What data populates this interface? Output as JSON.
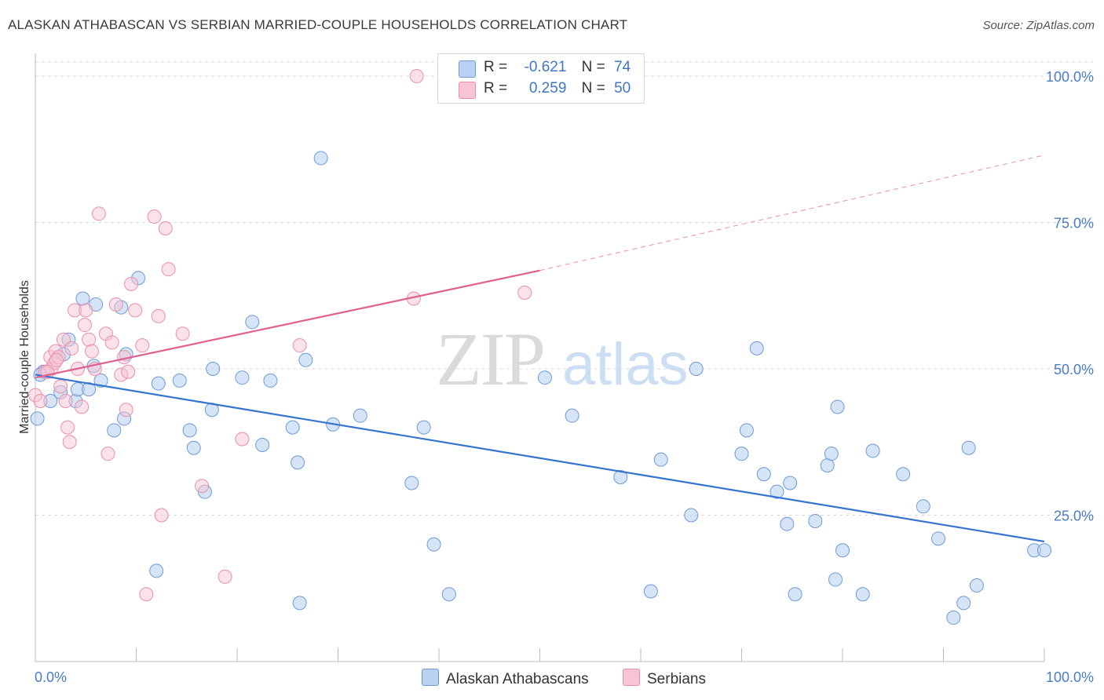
{
  "title": "ALASKAN ATHABASCAN VS SERBIAN MARRIED-COUPLE HOUSEHOLDS CORRELATION CHART",
  "source": "Source: ZipAtlas.com",
  "watermark": {
    "zip": "ZIP",
    "atlas": "atlas"
  },
  "legend": {
    "rows": [
      {
        "r_label": "R =",
        "r_value": "-0.621",
        "n_label": "N =",
        "n_value": "74"
      },
      {
        "r_label": "R =",
        "r_value": " 0.259",
        "n_label": "N =",
        "n_value": "50"
      }
    ]
  },
  "colors": {
    "blue_fill": "#b9d2f2",
    "blue_stroke": "#6f9ad6",
    "blue_line": "#3474d0",
    "pink_fill": "#f8c4d4",
    "pink_stroke": "#e890aa",
    "pink_line": "#e06090",
    "tick_text": "#4a7cc4",
    "grid": "#dddddd"
  },
  "chart_data": {
    "type": "scatter",
    "title": "ALASKAN ATHABASCAN VS SERBIAN MARRIED-COUPLE HOUSEHOLDS CORRELATION CHART",
    "xlabel": "",
    "ylabel": "Married-couple Households",
    "xlim": [
      0,
      100
    ],
    "ylim": [
      0,
      100
    ],
    "x_tick_labels": [
      "0.0%",
      "100.0%"
    ],
    "y_tick_labels": [
      "100.0%",
      "75.0%",
      "50.0%",
      "25.0%"
    ],
    "y_ticks": [
      100,
      75,
      50,
      25
    ],
    "grid": true,
    "legend_placement": "bottom-center",
    "series": [
      {
        "name": "Alaskan Athabascans",
        "color": "#b9d2f2",
        "R": -0.621,
        "N": 74,
        "trend": {
          "x": [
            0,
            100
          ],
          "y": [
            49.0,
            20.5
          ]
        },
        "points": [
          [
            0.2,
            41.5
          ],
          [
            0.8,
            49.5
          ],
          [
            1.5,
            44.5
          ],
          [
            2.5,
            46
          ],
          [
            2.8,
            52.5
          ],
          [
            3.3,
            55
          ],
          [
            4,
            44.5
          ],
          [
            4.2,
            46.5
          ],
          [
            4.7,
            62
          ],
          [
            5.3,
            46.5
          ],
          [
            5.8,
            50.5
          ],
          [
            6,
            61
          ],
          [
            6.5,
            48
          ],
          [
            7.8,
            39.5
          ],
          [
            8.5,
            60.5
          ],
          [
            8.8,
            41.5
          ],
          [
            9,
            52.5
          ],
          [
            10.2,
            65.5
          ],
          [
            12,
            15.5
          ],
          [
            12.2,
            47.5
          ],
          [
            14.3,
            48
          ],
          [
            15.3,
            39.5
          ],
          [
            15.7,
            36.5
          ],
          [
            16.8,
            29
          ],
          [
            17.5,
            43
          ],
          [
            17.6,
            50
          ],
          [
            20.5,
            48.5
          ],
          [
            21.5,
            58
          ],
          [
            22.5,
            37
          ],
          [
            23.3,
            48
          ],
          [
            25.5,
            40
          ],
          [
            26,
            34
          ],
          [
            26.2,
            10
          ],
          [
            26.8,
            51.5
          ],
          [
            28.3,
            86
          ],
          [
            29.5,
            40.5
          ],
          [
            32.2,
            42
          ],
          [
            37.3,
            30.5
          ],
          [
            38.5,
            40
          ],
          [
            39.5,
            20
          ],
          [
            41,
            11.5
          ],
          [
            50.5,
            48.5
          ],
          [
            53.2,
            42
          ],
          [
            58,
            31.5
          ],
          [
            61,
            12
          ],
          [
            62,
            34.5
          ],
          [
            65,
            25
          ],
          [
            65.5,
            50
          ],
          [
            70,
            35.5
          ],
          [
            70.5,
            39.5
          ],
          [
            71.5,
            53.5
          ],
          [
            72.2,
            32
          ],
          [
            73.5,
            29
          ],
          [
            74.5,
            23.5
          ],
          [
            74.8,
            30.5
          ],
          [
            75.3,
            11.5
          ],
          [
            77.3,
            24
          ],
          [
            78.5,
            33.5
          ],
          [
            78.9,
            35.5
          ],
          [
            79.3,
            14
          ],
          [
            79.5,
            43.5
          ],
          [
            80,
            19
          ],
          [
            82,
            11.5
          ],
          [
            83,
            36
          ],
          [
            86,
            32
          ],
          [
            88,
            26.5
          ],
          [
            89.5,
            21
          ],
          [
            91,
            7.5
          ],
          [
            92,
            10
          ],
          [
            92.5,
            36.5
          ],
          [
            93.3,
            13
          ],
          [
            99,
            19
          ],
          [
            100,
            19
          ],
          [
            0.5,
            49
          ]
        ]
      },
      {
        "name": "Serbians",
        "color": "#f8c4d4",
        "R": 0.259,
        "N": 50,
        "trend": {
          "x": [
            0,
            50
          ],
          "y": [
            48.5,
            66.8
          ]
        },
        "trend_dashed": {
          "x": [
            50,
            100
          ],
          "y": [
            66.8,
            86.5
          ]
        },
        "points": [
          [
            0,
            45.5
          ],
          [
            0.5,
            44.5
          ],
          [
            1,
            49.5
          ],
          [
            1.5,
            52
          ],
          [
            1.6,
            50
          ],
          [
            1.9,
            51
          ],
          [
            2,
            53
          ],
          [
            2.3,
            52
          ],
          [
            2.5,
            47
          ],
          [
            2.8,
            55
          ],
          [
            3,
            44.5
          ],
          [
            3.2,
            40
          ],
          [
            3.4,
            37.5
          ],
          [
            3.6,
            53.5
          ],
          [
            3.9,
            60
          ],
          [
            4.2,
            50
          ],
          [
            4.6,
            43.5
          ],
          [
            4.9,
            57.5
          ],
          [
            5,
            60
          ],
          [
            5.3,
            55
          ],
          [
            5.6,
            53
          ],
          [
            5.9,
            50
          ],
          [
            6.3,
            76.5
          ],
          [
            7,
            56
          ],
          [
            7.2,
            35.5
          ],
          [
            7.6,
            54.5
          ],
          [
            8,
            61
          ],
          [
            8.5,
            49
          ],
          [
            8.8,
            52
          ],
          [
            9,
            43
          ],
          [
            9.2,
            49.5
          ],
          [
            9.5,
            64.5
          ],
          [
            9.9,
            60
          ],
          [
            10.6,
            54
          ],
          [
            11,
            11.5
          ],
          [
            11.8,
            76
          ],
          [
            12.2,
            59
          ],
          [
            12.5,
            25
          ],
          [
            12.9,
            74
          ],
          [
            13.2,
            67
          ],
          [
            14.6,
            56
          ],
          [
            16.5,
            30
          ],
          [
            18.8,
            14.5
          ],
          [
            20.5,
            38
          ],
          [
            26.2,
            54
          ],
          [
            37.5,
            62
          ],
          [
            37.8,
            100
          ],
          [
            48.5,
            63
          ],
          [
            1.2,
            49.5
          ],
          [
            2.1,
            51.5
          ]
        ]
      }
    ]
  }
}
